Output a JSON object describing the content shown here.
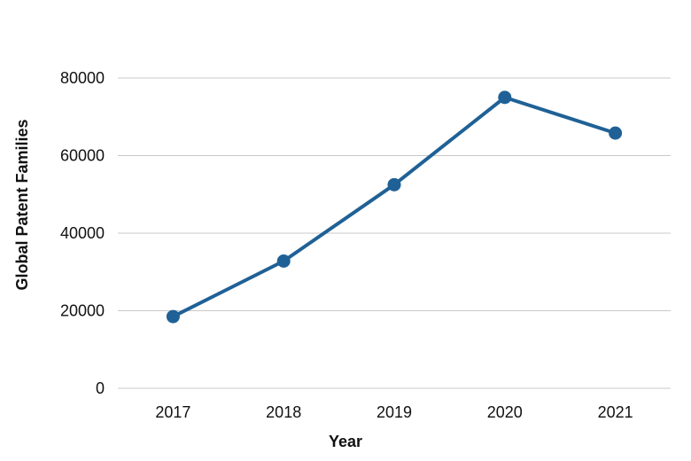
{
  "chart_data": {
    "type": "line",
    "title": "",
    "xlabel": "Year",
    "ylabel": "Global Patent Families",
    "categories": [
      "2017",
      "2018",
      "2019",
      "2020",
      "2021"
    ],
    "series": [
      {
        "values": [
          18500,
          32800,
          52500,
          75000,
          65800
        ]
      }
    ],
    "ylim": [
      0,
      80000
    ],
    "yticks": [
      0,
      20000,
      40000,
      60000,
      80000
    ],
    "ytick_labels": [
      "0",
      "20000",
      "40000",
      "60000",
      "80000"
    ],
    "grid": "horizontal",
    "line_color": "#1f6196",
    "grid_color": "#c8c8c8",
    "legend": "none"
  }
}
